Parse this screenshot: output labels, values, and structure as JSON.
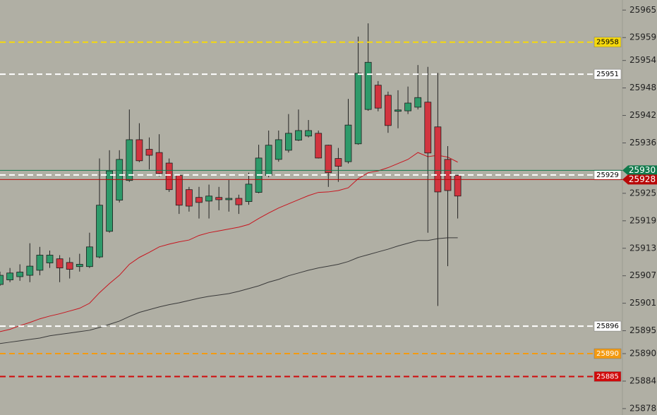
{
  "chart_data": {
    "type": "candlestick",
    "ylim": [
      25876.6,
      25967.2
    ],
    "yticks": [
      25965,
      25959,
      25954,
      25948,
      25942,
      25936,
      25925,
      25919,
      25913,
      25907,
      25901,
      25895,
      25890,
      25884,
      25878
    ],
    "up_color": "#2e9a6a",
    "down_color": "#d2343f",
    "open": [
      25905.1,
      25906.1,
      25906.8,
      25907.1,
      25908.2,
      25909.8,
      25910.7,
      25909.9,
      25909.0,
      25909.0,
      25911.1,
      25916.7,
      25923.5,
      25927.8,
      25936.7,
      25934.6,
      25933.9,
      25931.6,
      25928.9,
      25925.8,
      25924.1,
      25923.3,
      25924.1,
      25923.6,
      25923.9,
      25923.2,
      25925.2,
      25928.9,
      25932.4,
      25934.4,
      25936.6,
      25937.5,
      25938.1,
      25935.5,
      25932.6,
      25931.9,
      25935.8,
      25943.3,
      25948.6,
      25946.4,
      25942.9,
      25943.0,
      25943.8,
      25944.9,
      25939.5,
      25932.4,
      25928.9
    ],
    "high": [
      25907.9,
      25908.7,
      25909.5,
      25914.1,
      25913.3,
      25912.5,
      25911.5,
      25911.0,
      25911.8,
      25916.4,
      25932.6,
      25934.4,
      25934.4,
      25943.3,
      25940.3,
      25937.2,
      25937.9,
      25932.6,
      25929.0,
      25926.4,
      25926.4,
      25926.9,
      25926.4,
      25927.9,
      25924.7,
      25929.5,
      25935.6,
      25938.7,
      25938.7,
      25942.3,
      25943.3,
      25941.0,
      25938.7,
      25935.6,
      25934.9,
      25945.6,
      25959.2,
      25962.1,
      25949.5,
      25947.2,
      25947.5,
      25948.3,
      25953.0,
      25952.6,
      25951.3,
      25935.3,
      25929.0
    ],
    "low": [
      25904.8,
      25905.6,
      25905.9,
      25905.6,
      25907.1,
      25908.7,
      25905.6,
      25906.4,
      25907.9,
      25908.7,
      25910.8,
      25916.4,
      25923.0,
      25927.5,
      25931.8,
      25930.2,
      25928.7,
      25925.3,
      25920.5,
      25921.0,
      25919.5,
      25919.5,
      25921.3,
      25921.0,
      25920.5,
      25922.5,
      25925.0,
      25928.5,
      25931.9,
      25933.9,
      25936.4,
      25937.2,
      25932.6,
      25926.4,
      25927.5,
      25931.5,
      25935.6,
      25943.0,
      25942.9,
      25938.2,
      25939.2,
      25942.3,
      25943.3,
      25916.4,
      25900.4,
      25909.1,
      25919.5
    ],
    "close": [
      25907.1,
      25907.6,
      25907.8,
      25909.1,
      25911.5,
      25911.5,
      25908.7,
      25908.4,
      25909.5,
      25913.3,
      25922.4,
      25929.9,
      25932.4,
      25936.7,
      25932.1,
      25933.3,
      25929.3,
      25925.8,
      25922.4,
      25922.2,
      25923.0,
      25924.4,
      25923.6,
      25923.9,
      25922.5,
      25927.0,
      25932.7,
      25935.5,
      25936.7,
      25938.1,
      25938.7,
      25938.7,
      25932.7,
      25929.5,
      25930.9,
      25939.9,
      25951.2,
      25953.6,
      25943.6,
      25939.8,
      25943.2,
      25944.7,
      25945.9,
      25933.8,
      25925.3,
      25925.6,
      25924.4
    ],
    "moving_averages": [
      {
        "color": "#c8141e",
        "values": [
          25894.8,
          25895.3,
          25896.1,
          25896.8,
          25897.6,
          25898.2,
          25898.7,
          25899.3,
          25899.9,
          25901.0,
          25903.3,
          25905.3,
          25907.1,
          25909.5,
          25911.0,
          25912.1,
          25913.3,
          25913.9,
          25914.4,
          25914.8,
          25915.8,
          25916.4,
          25916.8,
          25917.2,
          25917.6,
          25918.2,
          25919.5,
          25920.7,
          25921.8,
          25922.7,
          25923.6,
          25924.5,
          25925.2,
          25925.3,
          25925.6,
          25926.2,
          25928.2,
          25929.5,
          25929.9,
          25930.6,
          25931.5,
          25932.4,
          25933.9,
          25933.0,
          25933.3,
          25932.9,
          25931.8
        ]
      },
      {
        "color": "#3a3a3a",
        "values": [
          25892.2,
          25892.5,
          25892.8,
          25893.1,
          25893.4,
          25893.9,
          25894.2,
          25894.5,
          25894.8,
          25895.1,
          25895.7,
          25896.4,
          25897.1,
          25898.1,
          25899.0,
          25899.6,
          25900.2,
          25900.7,
          25901.1,
          25901.6,
          25902.1,
          25902.5,
          25902.8,
          25903.1,
          25903.6,
          25904.2,
          25904.8,
          25905.6,
          25906.2,
          25907.0,
          25907.6,
          25908.2,
          25908.7,
          25909.1,
          25909.5,
          25910.1,
          25911.0,
          25911.6,
          25912.2,
          25912.8,
          25913.5,
          25914.1,
          25914.7,
          25914.7,
          25915.1,
          25915.3,
          25915.3
        ]
      }
    ],
    "levels": [
      {
        "value": 25958,
        "color": "#f5d80c",
        "dashed": true,
        "tag": "plot",
        "text_color": "#000000"
      },
      {
        "value": 25951,
        "color": "#ffffff",
        "dashed": true,
        "tag": "plot",
        "text_color": "#000000"
      },
      {
        "value": 25929,
        "color": "#ffffff",
        "dashed": true,
        "tag": "plot",
        "text_color": "#000000"
      },
      {
        "value": 25896,
        "color": "#ffffff",
        "dashed": true,
        "tag": "plot",
        "text_color": "#000000"
      },
      {
        "value": 25890,
        "color": "#f39a10",
        "dashed": true,
        "tag": "plot",
        "text_color": "#ffffff"
      },
      {
        "value": 25885,
        "color": "#d00a0a",
        "dashed": true,
        "tag": "plot",
        "text_color": "#ffffff"
      },
      {
        "value": 25930,
        "color": "#117a4c",
        "dashed": false,
        "tag": "axis",
        "text_color": "#ffffff"
      },
      {
        "value": 25928,
        "color": "#b80808",
        "dashed": false,
        "tag": "axis",
        "text_color": "#ffffff"
      }
    ]
  }
}
